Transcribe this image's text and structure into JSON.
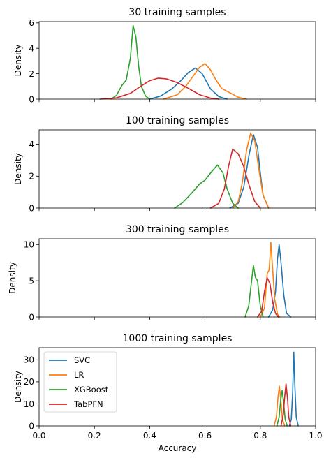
{
  "figure": {
    "xlabel": "Accuracy",
    "ylabel": "Density"
  },
  "legend": {
    "placement": "upper-left, bottom panel",
    "entries": [
      "SVC",
      "LR",
      "XGBoost",
      "TabPFN"
    ]
  },
  "chart_data": [
    {
      "type": "line",
      "title": "30 training samples",
      "ylabel": "Density",
      "xlim": [
        0.0,
        1.0
      ],
      "ylim": [
        0,
        6.1
      ],
      "yticks": [
        "0",
        "2",
        "4",
        "6"
      ],
      "yticks_values": [
        0,
        2,
        4,
        6
      ],
      "grid": false,
      "series": [
        {
          "name": "SVC",
          "color": "#1f77b4",
          "x": [
            0.4,
            0.44,
            0.48,
            0.51,
            0.54,
            0.565,
            0.59,
            0.62,
            0.65,
            0.68
          ],
          "y": [
            0.0,
            0.25,
            0.8,
            1.4,
            2.1,
            2.45,
            2.0,
            0.8,
            0.2,
            0.0
          ]
        },
        {
          "name": "LR",
          "color": "#ff7f0e",
          "x": [
            0.45,
            0.5,
            0.53,
            0.56,
            0.58,
            0.6,
            0.62,
            0.64,
            0.66,
            0.69,
            0.72,
            0.75
          ],
          "y": [
            0.0,
            0.35,
            1.0,
            1.9,
            2.5,
            2.8,
            2.3,
            1.5,
            0.85,
            0.5,
            0.15,
            0.0
          ]
        },
        {
          "name": "XGBoost",
          "color": "#2ca02c",
          "x": [
            0.26,
            0.28,
            0.3,
            0.315,
            0.33,
            0.34,
            0.35,
            0.36,
            0.37,
            0.385,
            0.4
          ],
          "y": [
            0.0,
            0.3,
            1.1,
            1.5,
            3.2,
            5.8,
            4.9,
            2.6,
            1.0,
            0.25,
            0.0
          ]
        },
        {
          "name": "TabPFN",
          "color": "#d62728",
          "x": [
            0.22,
            0.28,
            0.33,
            0.37,
            0.4,
            0.43,
            0.46,
            0.5,
            0.54,
            0.58,
            0.62,
            0.65
          ],
          "y": [
            0.0,
            0.1,
            0.45,
            1.05,
            1.45,
            1.65,
            1.6,
            1.3,
            0.85,
            0.35,
            0.08,
            0.0
          ]
        }
      ]
    },
    {
      "type": "line",
      "title": "100 training samples",
      "ylabel": "Density",
      "xlim": [
        0.0,
        1.0
      ],
      "ylim": [
        0,
        4.9
      ],
      "yticks": [
        "0",
        "2",
        "4"
      ],
      "yticks_values": [
        0,
        2,
        4
      ],
      "grid": false,
      "series": [
        {
          "name": "SVC",
          "color": "#1f77b4",
          "x": [
            0.69,
            0.72,
            0.74,
            0.76,
            0.775,
            0.79,
            0.8,
            0.81,
            0.83
          ],
          "y": [
            0.0,
            0.3,
            1.3,
            3.4,
            4.6,
            3.8,
            2.2,
            0.8,
            0.0
          ]
        },
        {
          "name": "LR",
          "color": "#ff7f0e",
          "x": [
            0.7,
            0.72,
            0.735,
            0.75,
            0.765,
            0.78,
            0.795,
            0.81,
            0.83
          ],
          "y": [
            0.0,
            0.4,
            1.6,
            3.6,
            4.7,
            4.2,
            2.4,
            0.8,
            0.0
          ]
        },
        {
          "name": "XGBoost",
          "color": "#2ca02c",
          "x": [
            0.49,
            0.52,
            0.55,
            0.58,
            0.6,
            0.625,
            0.645,
            0.665,
            0.68,
            0.7,
            0.72
          ],
          "y": [
            0.0,
            0.35,
            0.9,
            1.5,
            1.75,
            2.3,
            2.7,
            2.2,
            1.2,
            0.3,
            0.0
          ]
        },
        {
          "name": "TabPFN",
          "color": "#d62728",
          "x": [
            0.62,
            0.65,
            0.67,
            0.685,
            0.7,
            0.72,
            0.74,
            0.76,
            0.78,
            0.8
          ],
          "y": [
            0.0,
            0.3,
            1.2,
            2.6,
            3.7,
            3.4,
            2.6,
            1.4,
            0.4,
            0.0
          ]
        }
      ]
    },
    {
      "type": "line",
      "title": "300 training samples",
      "ylabel": "Density",
      "xlim": [
        0.0,
        1.0
      ],
      "ylim": [
        0,
        10.8
      ],
      "yticks": [
        "0",
        "5",
        "10"
      ],
      "yticks_values": [
        0,
        5,
        10
      ],
      "grid": false,
      "series": [
        {
          "name": "SVC",
          "color": "#1f77b4",
          "x": [
            0.83,
            0.845,
            0.855,
            0.862,
            0.868,
            0.875,
            0.885,
            0.895,
            0.91
          ],
          "y": [
            0.0,
            1.0,
            3.5,
            8.0,
            10.0,
            7.5,
            3.0,
            0.5,
            0.0
          ]
        },
        {
          "name": "LR",
          "color": "#ff7f0e",
          "x": [
            0.8,
            0.815,
            0.825,
            0.832,
            0.838,
            0.844,
            0.852,
            0.862,
            0.87
          ],
          "y": [
            0.0,
            1.2,
            6.0,
            6.5,
            10.3,
            7.0,
            2.5,
            0.4,
            0.0
          ]
        },
        {
          "name": "XGBoost",
          "color": "#2ca02c",
          "x": [
            0.745,
            0.758,
            0.767,
            0.775,
            0.782,
            0.79,
            0.8,
            0.81
          ],
          "y": [
            0.0,
            1.5,
            4.5,
            7.1,
            5.5,
            5.0,
            1.5,
            0.0
          ]
        },
        {
          "name": "TabPFN",
          "color": "#d62728",
          "x": [
            0.79,
            0.805,
            0.815,
            0.825,
            0.835,
            0.845,
            0.855,
            0.865
          ],
          "y": [
            0.0,
            0.8,
            3.5,
            5.4,
            4.6,
            2.0,
            0.5,
            0.0
          ]
        }
      ]
    },
    {
      "type": "line",
      "title": "1000 training samples",
      "ylabel": "Density",
      "xlabel": "Accuracy",
      "xlim": [
        0.0,
        1.0
      ],
      "ylim": [
        0,
        35.5
      ],
      "xticks": [
        "0.0",
        "0.2",
        "0.4",
        "0.6",
        "0.8",
        "1.0"
      ],
      "xticks_values": [
        0.0,
        0.2,
        0.4,
        0.6,
        0.8,
        1.0
      ],
      "yticks": [
        "0",
        "10",
        "20",
        "30"
      ],
      "yticks_values": [
        0,
        10,
        20,
        30
      ],
      "grid": false,
      "series": [
        {
          "name": "SVC",
          "color": "#1f77b4",
          "x": [
            0.905,
            0.912,
            0.917,
            0.921,
            0.925,
            0.93,
            0.937
          ],
          "y": [
            0.0,
            3.0,
            15.0,
            33.5,
            18.0,
            4.0,
            0.0
          ]
        },
        {
          "name": "LR",
          "color": "#ff7f0e",
          "x": [
            0.85,
            0.858,
            0.864,
            0.869,
            0.874,
            0.88,
            0.888
          ],
          "y": [
            0.0,
            4.0,
            13.0,
            18.0,
            12.0,
            3.0,
            0.0
          ]
        },
        {
          "name": "XGBoost",
          "color": "#2ca02c",
          "x": [
            0.86,
            0.868,
            0.874,
            0.879,
            0.884,
            0.89,
            0.897
          ],
          "y": [
            0.0,
            4.0,
            12.0,
            16.0,
            11.0,
            3.0,
            0.0
          ]
        },
        {
          "name": "TabPFN",
          "color": "#d62728",
          "x": [
            0.875,
            0.883,
            0.888,
            0.893,
            0.898,
            0.903,
            0.91
          ],
          "y": [
            0.0,
            5.0,
            13.0,
            19.0,
            13.0,
            4.0,
            0.0
          ]
        }
      ]
    }
  ]
}
